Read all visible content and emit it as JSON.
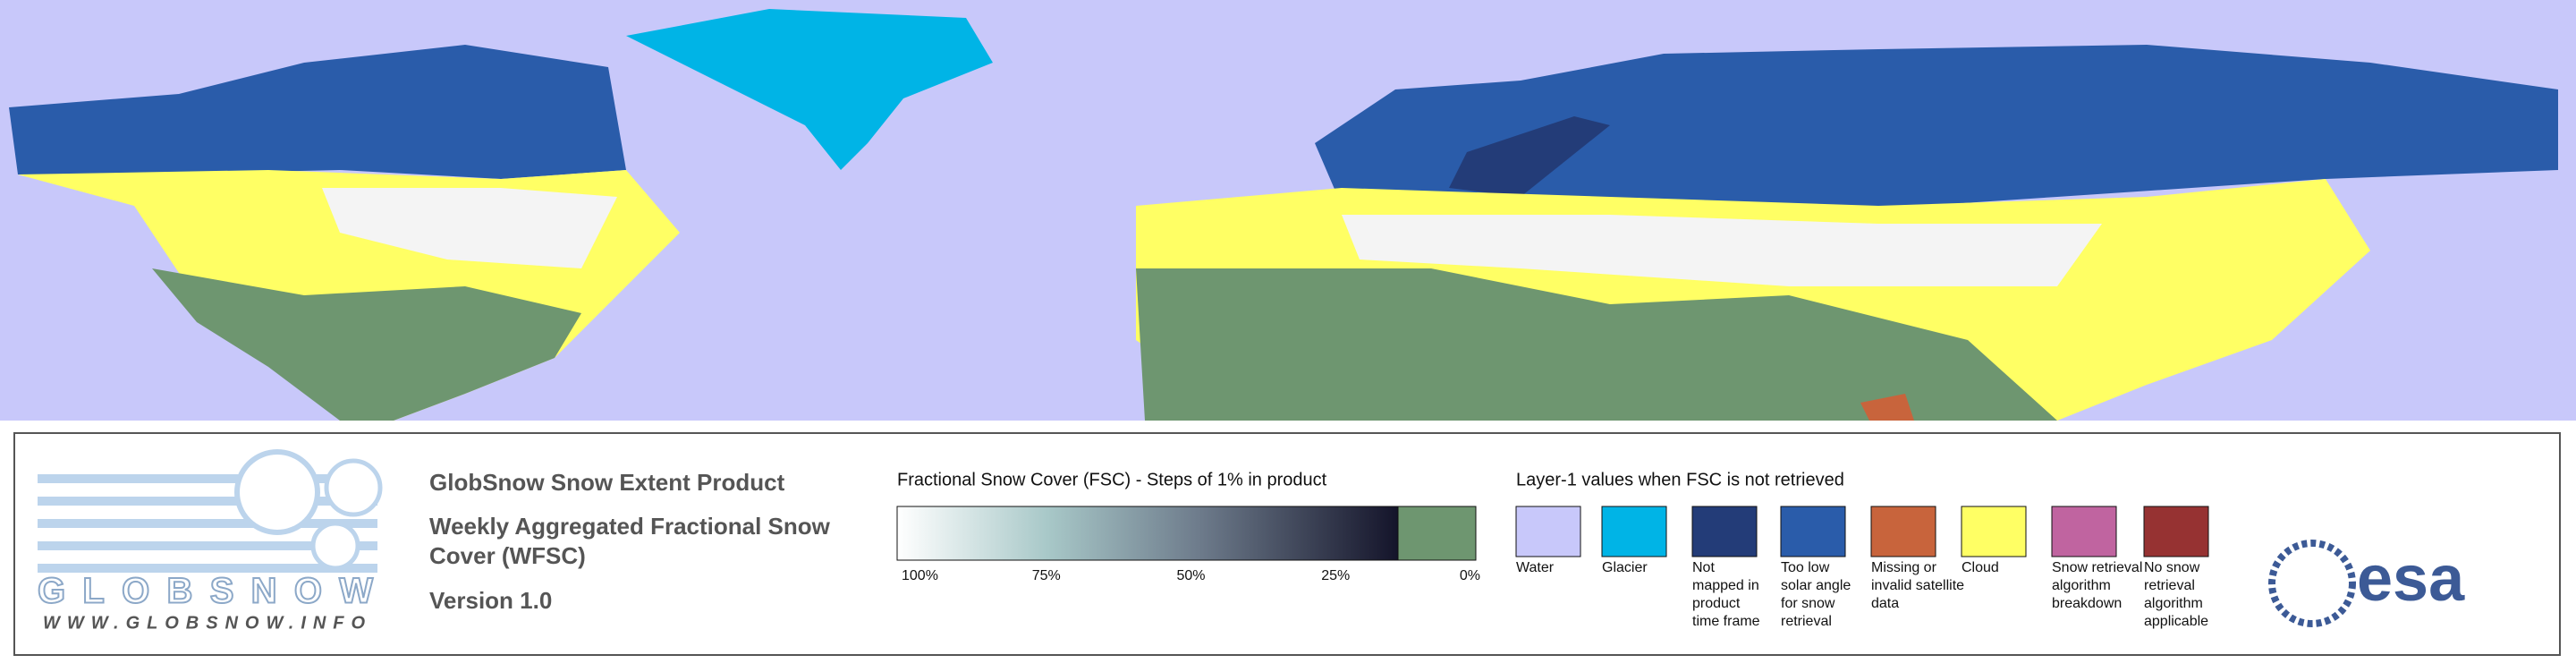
{
  "logo": {
    "name": "GLOBSNOW",
    "url": "WWW.GLOBSNOW.INFO"
  },
  "product": {
    "title": "GlobSnow Snow Extent Product",
    "subtitle_lines": [
      "Weekly Aggregated Fractional Snow",
      "Cover (WFSC)"
    ],
    "version": "Version 1.0"
  },
  "fsc_legend": {
    "title": "Fractional Snow Cover (FSC) - Steps of 1% in product",
    "ticks": [
      "100%",
      "75%",
      "50%",
      "25%",
      "0%"
    ]
  },
  "layer1_legend": {
    "title": "Layer-1 values when FSC is not retrieved",
    "classes": [
      {
        "label_lines": [
          "Water"
        ],
        "color": "#c8c8fa"
      },
      {
        "label_lines": [
          "Glacier"
        ],
        "color": "#00b4e6"
      },
      {
        "label_lines": [
          "Not",
          "mapped in",
          "product",
          "time frame"
        ],
        "color": "#233c78"
      },
      {
        "label_lines": [
          "Too low",
          "solar angle",
          "for snow",
          "retrieval"
        ],
        "color": "#2a5caa"
      },
      {
        "label_lines": [
          "Missing or",
          "invalid satellite",
          "data"
        ],
        "color": "#c8643c"
      },
      {
        "label_lines": [
          "Cloud"
        ],
        "color": "#ffff64"
      },
      {
        "label_lines": [
          "Snow retrieval",
          "algorithm",
          "breakdown"
        ],
        "color": "#c064a0"
      },
      {
        "label_lines": [
          "No snow",
          "retrieval",
          "algorithm",
          "applicable"
        ],
        "color": "#963232"
      }
    ]
  },
  "agency": "esa"
}
